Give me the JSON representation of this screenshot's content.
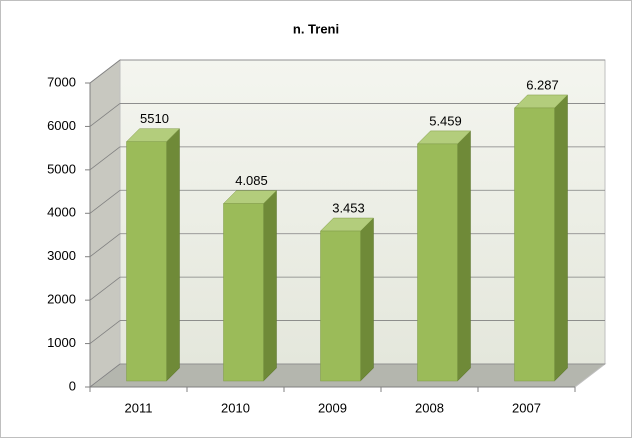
{
  "chart_data": {
    "type": "bar3d",
    "title": "n. Treni",
    "categories": [
      "2011",
      "2010",
      "2009",
      "2008",
      "2007"
    ],
    "values": [
      5510,
      4085,
      3453,
      5459,
      6287
    ],
    "value_labels": [
      "5510",
      "4.085",
      "3.453",
      "5.459",
      "6.287"
    ],
    "color": "#9bbb59",
    "ylim": [
      0,
      7000
    ],
    "yticks": [
      0,
      1000,
      2000,
      3000,
      4000,
      5000,
      6000,
      7000
    ],
    "grid": true
  }
}
